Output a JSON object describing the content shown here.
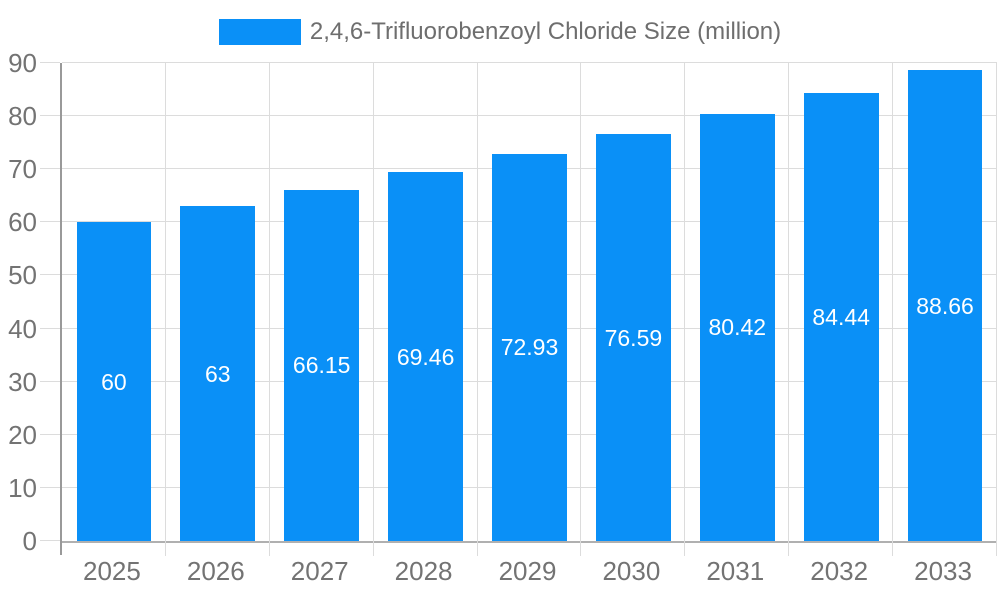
{
  "legend": {
    "label": "2,4,6-Trifluorobenzoyl Chloride Size (million)"
  },
  "chart_data": {
    "type": "bar",
    "title": "2,4,6-Trifluorobenzoyl Chloride Size (million)",
    "categories": [
      "2025",
      "2026",
      "2027",
      "2028",
      "2029",
      "2030",
      "2031",
      "2032",
      "2033"
    ],
    "values": [
      60,
      63,
      66.15,
      69.46,
      72.93,
      76.59,
      80.42,
      84.44,
      88.66
    ],
    "value_labels": [
      "60",
      "63",
      "66.15",
      "69.46",
      "72.93",
      "76.59",
      "80.42",
      "84.44",
      "88.66"
    ],
    "xlabel": "",
    "ylabel": "",
    "ylim": [
      0,
      90
    ],
    "ytick_step": 10,
    "ytick_labels": [
      "0",
      "10",
      "20",
      "30",
      "40",
      "50",
      "60",
      "70",
      "80",
      "90"
    ],
    "grid": true,
    "legend_position": "top-center",
    "bar_width_fraction": 0.72
  },
  "colors": {
    "bar": "#0a90f7",
    "bar_label": "#ffffff",
    "axis_text": "#737373",
    "legend_text": "#6e6e6e",
    "grid_line": "#dcdcdc",
    "axis_line_x": "#b0b0b0",
    "axis_line_y": "#999999",
    "background": "#ffffff"
  }
}
